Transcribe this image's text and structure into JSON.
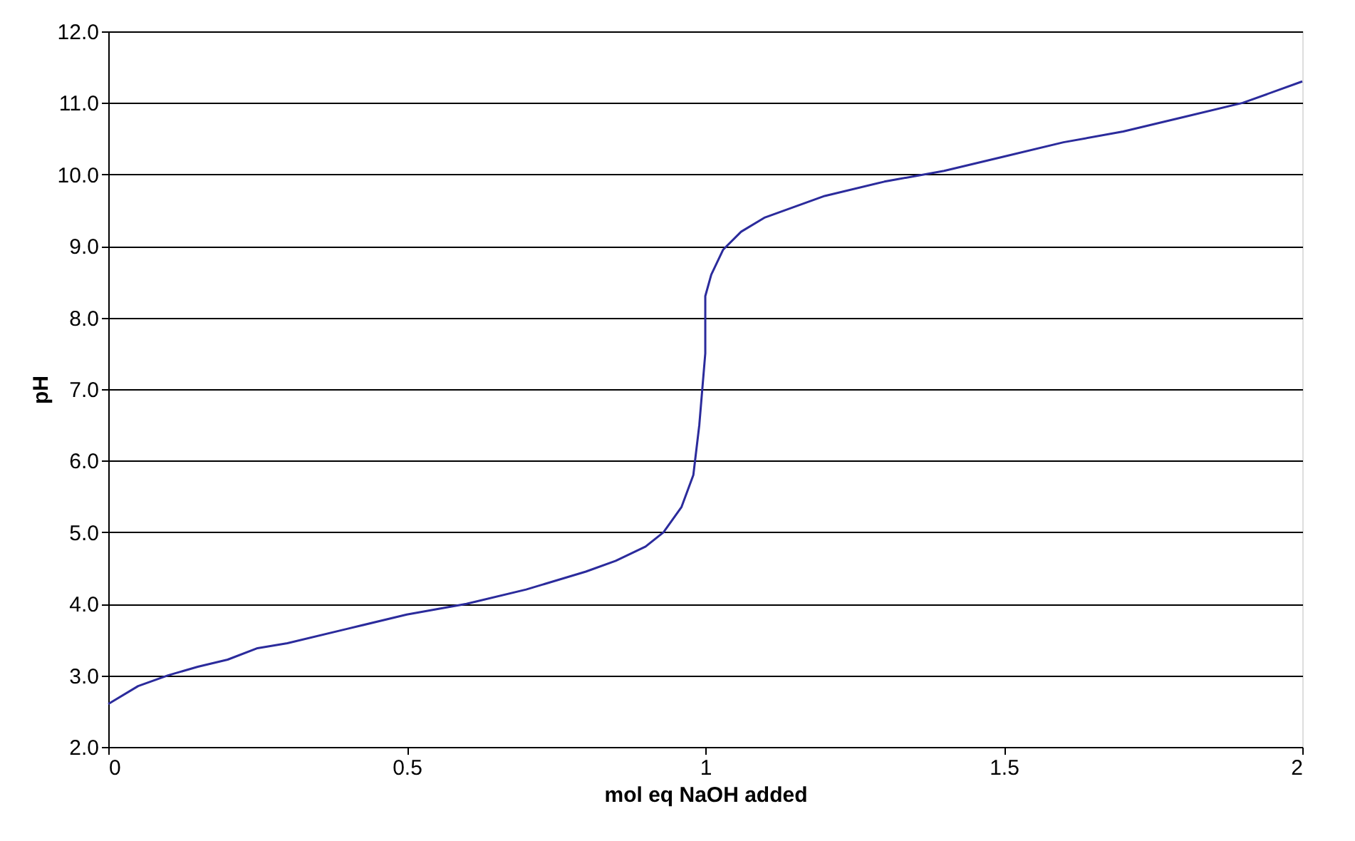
{
  "chart_data": {
    "type": "line",
    "xlabel": "mol eq NaOH added",
    "ylabel": "pH",
    "x": [
      0,
      0.05,
      0.1,
      0.15,
      0.2,
      0.25,
      0.3,
      0.4,
      0.5,
      0.6,
      0.7,
      0.8,
      0.85,
      0.9,
      0.93,
      0.96,
      0.98,
      0.99,
      1.0,
      1.0,
      1.01,
      1.03,
      1.06,
      1.1,
      1.2,
      1.3,
      1.4,
      1.5,
      1.6,
      1.7,
      1.8,
      1.9,
      2.0
    ],
    "series": [
      {
        "color": "#2b2b9c",
        "values": [
          2.6,
          2.85,
          3.0,
          3.12,
          3.22,
          3.38,
          3.45,
          3.65,
          3.85,
          4.0,
          4.2,
          4.45,
          4.6,
          4.8,
          5.0,
          5.35,
          5.8,
          6.5,
          7.5,
          8.3,
          8.6,
          8.95,
          9.2,
          9.4,
          9.7,
          9.9,
          10.05,
          10.25,
          10.45,
          10.6,
          10.8,
          11.0,
          11.3
        ]
      }
    ],
    "xlim": [
      0,
      2
    ],
    "xticks": [
      0,
      0.5,
      1,
      1.5,
      2
    ],
    "ylim": [
      2,
      12
    ],
    "yticks": [
      {
        "value": 2,
        "label": "2.0"
      },
      {
        "value": 3,
        "label": "3.0"
      },
      {
        "value": 4,
        "label": "4.0"
      },
      {
        "value": 5,
        "label": "5.0"
      },
      {
        "value": 6,
        "label": "6.0"
      },
      {
        "value": 7,
        "label": "7.0"
      },
      {
        "value": 8,
        "label": "8.0"
      },
      {
        "value": 9,
        "label": "9.0"
      },
      {
        "value": 10,
        "label": "10.0"
      },
      {
        "value": 11,
        "label": "11.0"
      },
      {
        "value": 12,
        "label": "12.0"
      }
    ],
    "grid": "y",
    "marker": "none",
    "line_style": "solid",
    "legend": false
  }
}
